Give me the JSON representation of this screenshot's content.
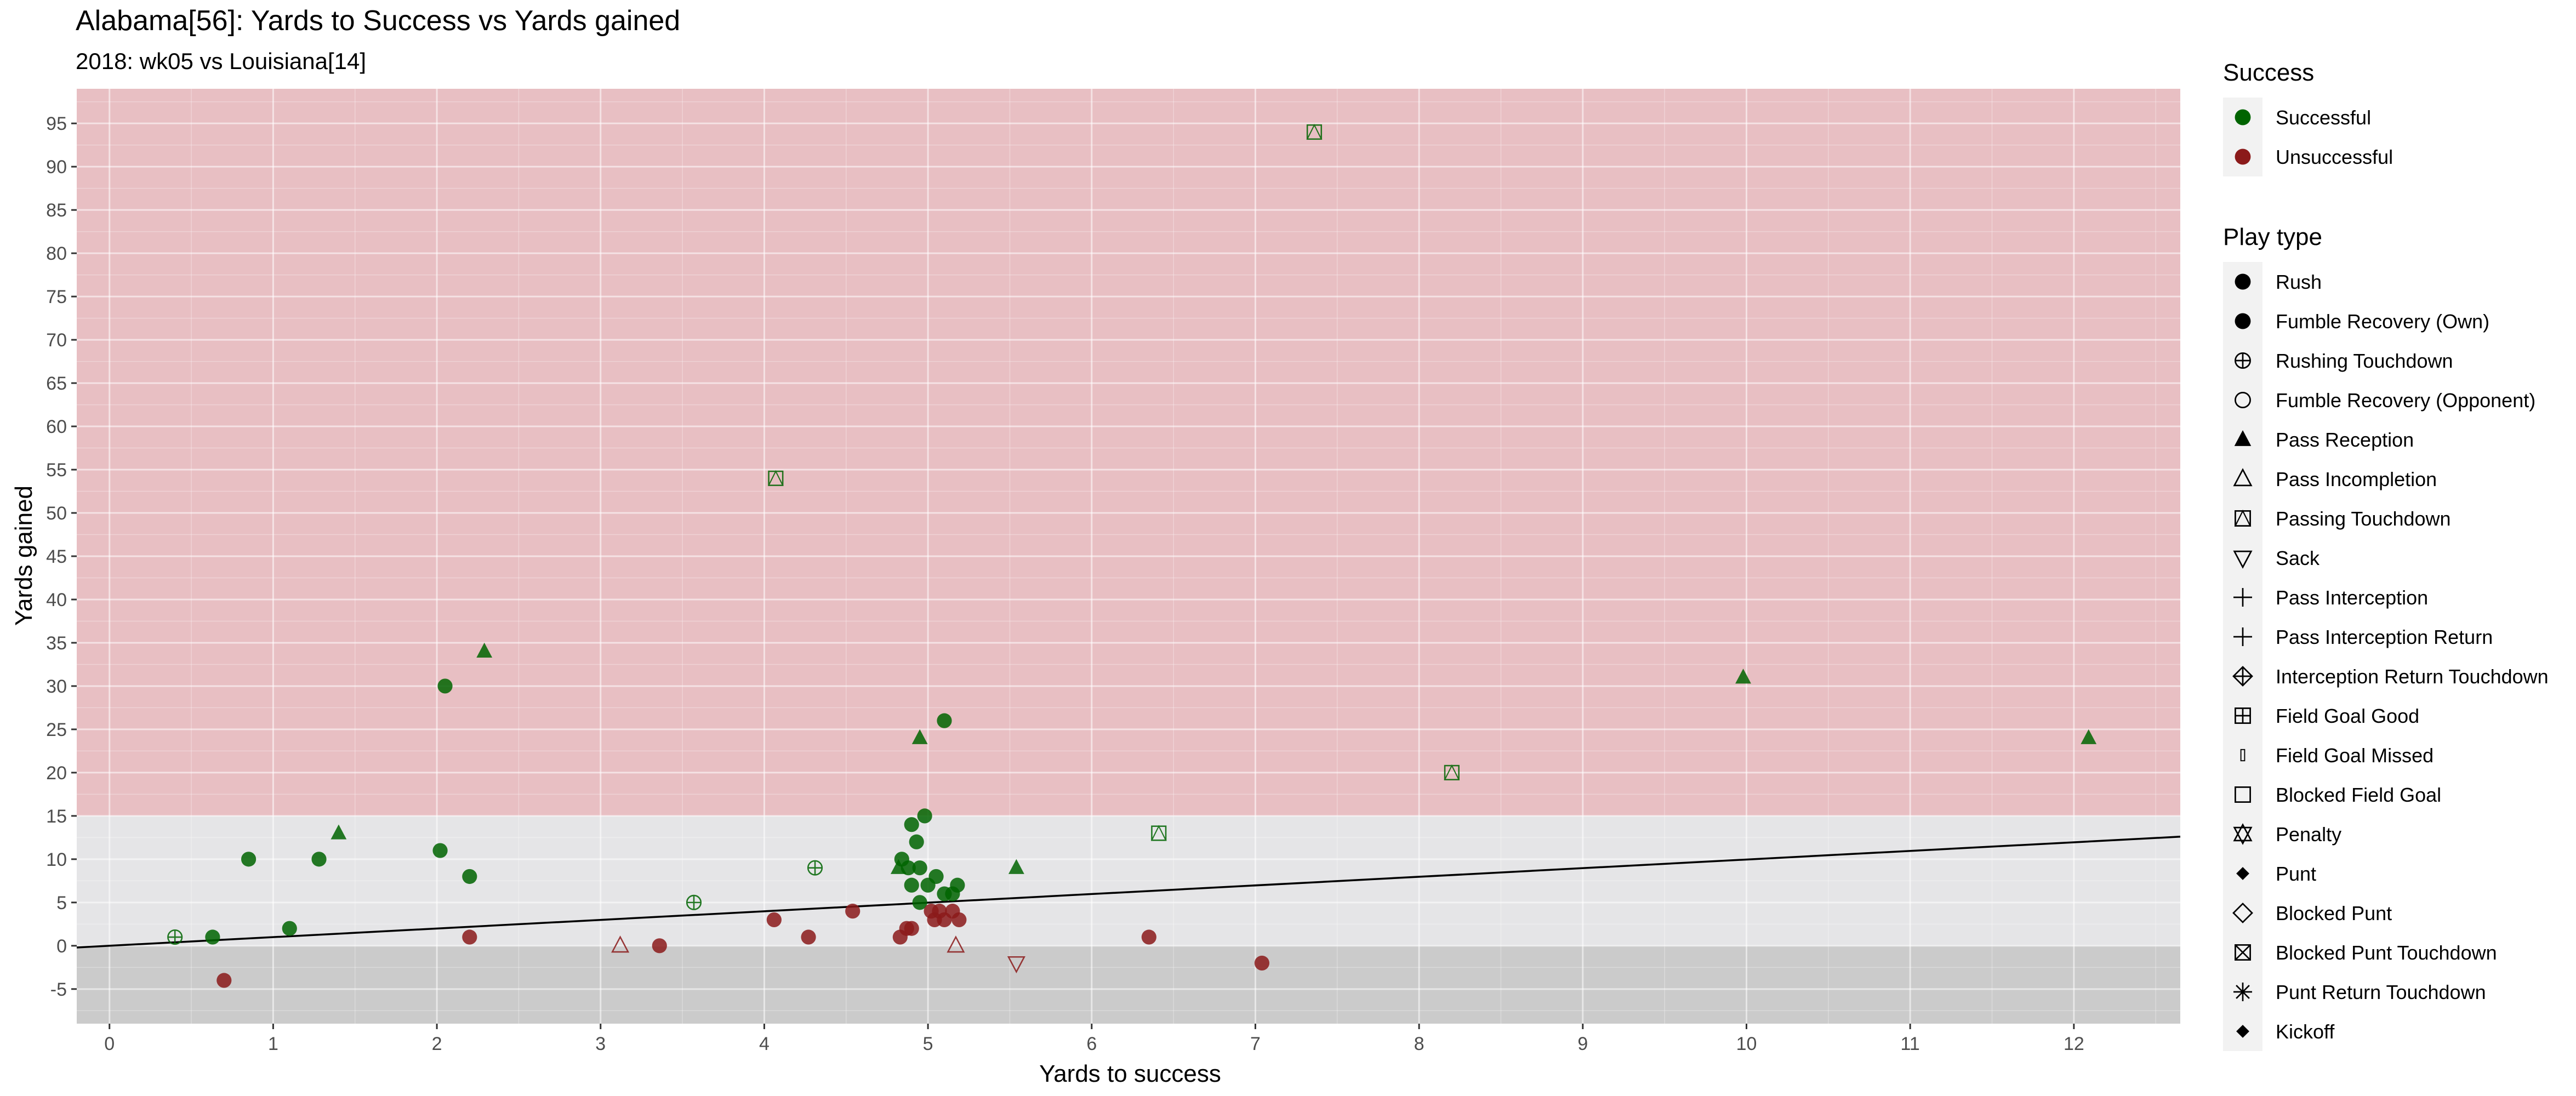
{
  "chart_data": {
    "type": "scatter",
    "title": "Alabama[56]: Yards to Success vs Yards gained",
    "subtitle": "2018: wk05 vs Louisiana[14]",
    "xlabel": "Yards to success",
    "ylabel": "Yards gained",
    "xlim": [
      -0.2,
      12.65
    ],
    "ylim": [
      -9,
      99
    ],
    "x_ticks": [
      0,
      1,
      2,
      3,
      4,
      5,
      6,
      7,
      8,
      9,
      10,
      11,
      12
    ],
    "y_ticks": [
      -5,
      0,
      5,
      10,
      15,
      20,
      25,
      30,
      35,
      40,
      45,
      50,
      55,
      60,
      65,
      70,
      75,
      80,
      85,
      90,
      95
    ],
    "grid": true,
    "bands": [
      {
        "from": 15,
        "to": 99,
        "color": "#e8bfc3"
      },
      {
        "from": 0,
        "to": 15,
        "color": "#e5e5e7"
      },
      {
        "from": -9,
        "to": 0,
        "color": "#cbcbcb"
      }
    ],
    "trend_line": {
      "x1": -0.2,
      "y1": -0.2,
      "x2": 12.65,
      "y2": 12.6,
      "color": "#000000"
    },
    "colors": {
      "Successful": "#006400",
      "Unsuccessful": "#8b1a1a"
    },
    "legend_success": {
      "title": "Success",
      "items": [
        {
          "label": "Successful",
          "color": "#006400"
        },
        {
          "label": "Unsuccessful",
          "color": "#8b1a1a"
        }
      ]
    },
    "legend_playtype": {
      "title": "Play type",
      "items": [
        {
          "label": "Rush",
          "shape": "circle-filled"
        },
        {
          "label": "Fumble Recovery (Own)",
          "shape": "circle-filled"
        },
        {
          "label": "Rushing Touchdown",
          "shape": "circle-plus"
        },
        {
          "label": "Fumble Recovery (Opponent)",
          "shape": "circle-open"
        },
        {
          "label": "Pass Reception",
          "shape": "triangle-filled"
        },
        {
          "label": "Pass Incompletion",
          "shape": "triangle-open"
        },
        {
          "label": "Passing Touchdown",
          "shape": "square-triangle"
        },
        {
          "label": "Sack",
          "shape": "triangle-down-open"
        },
        {
          "label": "Pass Interception",
          "shape": "plus"
        },
        {
          "label": "Pass Interception Return",
          "shape": "plus"
        },
        {
          "label": "Interception Return Touchdown",
          "shape": "diamond-plus"
        },
        {
          "label": "Field Goal Good",
          "shape": "square-plus"
        },
        {
          "label": "Field Goal Missed",
          "shape": "thin-rect"
        },
        {
          "label": "Blocked Field Goal",
          "shape": "square-open"
        },
        {
          "label": "Penalty",
          "shape": "star-of-david"
        },
        {
          "label": "Punt",
          "shape": "diamond-filled"
        },
        {
          "label": "Blocked Punt",
          "shape": "diamond-open"
        },
        {
          "label": "Blocked Punt Touchdown",
          "shape": "square-x"
        },
        {
          "label": "Punt Return Touchdown",
          "shape": "asterisk"
        },
        {
          "label": "Kickoff",
          "shape": "diamond-filled"
        }
      ]
    },
    "points": [
      {
        "x": 0.4,
        "y": 1,
        "type": "Rushing Touchdown",
        "success": "Successful"
      },
      {
        "x": 0.63,
        "y": 1,
        "type": "Rush",
        "success": "Successful"
      },
      {
        "x": 0.85,
        "y": 10,
        "type": "Rush",
        "success": "Successful"
      },
      {
        "x": 1.1,
        "y": 2,
        "type": "Rush",
        "success": "Successful"
      },
      {
        "x": 1.28,
        "y": 10,
        "type": "Rush",
        "success": "Successful"
      },
      {
        "x": 1.4,
        "y": 13,
        "type": "Pass Reception",
        "success": "Successful"
      },
      {
        "x": 2.02,
        "y": 11,
        "type": "Rush",
        "success": "Successful"
      },
      {
        "x": 2.2,
        "y": 8,
        "type": "Rush",
        "success": "Successful"
      },
      {
        "x": 2.05,
        "y": 30,
        "type": "Rush",
        "success": "Successful"
      },
      {
        "x": 2.29,
        "y": 34,
        "type": "Pass Reception",
        "success": "Successful"
      },
      {
        "x": 3.57,
        "y": 5,
        "type": "Rushing Touchdown",
        "success": "Successful"
      },
      {
        "x": 4.07,
        "y": 54,
        "type": "Passing Touchdown",
        "success": "Successful"
      },
      {
        "x": 4.31,
        "y": 9,
        "type": "Rushing Touchdown",
        "success": "Successful"
      },
      {
        "x": 4.82,
        "y": 9,
        "type": "Pass Reception",
        "success": "Successful"
      },
      {
        "x": 4.84,
        "y": 10,
        "type": "Rush",
        "success": "Successful"
      },
      {
        "x": 4.88,
        "y": 9,
        "type": "Rush",
        "success": "Successful"
      },
      {
        "x": 4.9,
        "y": 14,
        "type": "Rush",
        "success": "Successful"
      },
      {
        "x": 4.93,
        "y": 12,
        "type": "Rush",
        "success": "Successful"
      },
      {
        "x": 4.95,
        "y": 24,
        "type": "Pass Reception",
        "success": "Successful"
      },
      {
        "x": 4.95,
        "y": 9,
        "type": "Rush",
        "success": "Successful"
      },
      {
        "x": 4.98,
        "y": 15,
        "type": "Rush",
        "success": "Successful"
      },
      {
        "x": 4.9,
        "y": 7,
        "type": "Rush",
        "success": "Successful"
      },
      {
        "x": 4.95,
        "y": 5,
        "type": "Rush",
        "success": "Successful"
      },
      {
        "x": 5.0,
        "y": 7,
        "type": "Rush",
        "success": "Successful"
      },
      {
        "x": 5.05,
        "y": 8,
        "type": "Rush",
        "success": "Successful"
      },
      {
        "x": 5.1,
        "y": 26,
        "type": "Rush",
        "success": "Successful"
      },
      {
        "x": 5.1,
        "y": 6,
        "type": "Rush",
        "success": "Successful"
      },
      {
        "x": 5.15,
        "y": 6,
        "type": "Rush",
        "success": "Successful"
      },
      {
        "x": 5.18,
        "y": 7,
        "type": "Rush",
        "success": "Successful"
      },
      {
        "x": 5.54,
        "y": 9,
        "type": "Pass Reception",
        "success": "Successful"
      },
      {
        "x": 6.41,
        "y": 13,
        "type": "Passing Touchdown",
        "success": "Successful"
      },
      {
        "x": 7.36,
        "y": 94,
        "type": "Passing Touchdown",
        "success": "Successful"
      },
      {
        "x": 8.2,
        "y": 20,
        "type": "Passing Touchdown",
        "success": "Successful"
      },
      {
        "x": 9.98,
        "y": 31,
        "type": "Pass Reception",
        "success": "Successful"
      },
      {
        "x": 12.09,
        "y": 24,
        "type": "Pass Reception",
        "success": "Successful"
      },
      {
        "x": 0.7,
        "y": -4,
        "type": "Rush",
        "success": "Unsuccessful"
      },
      {
        "x": 2.2,
        "y": 1,
        "type": "Rush",
        "success": "Unsuccessful"
      },
      {
        "x": 3.12,
        "y": 0,
        "type": "Pass Incompletion",
        "success": "Unsuccessful"
      },
      {
        "x": 3.36,
        "y": 0,
        "type": "Rush",
        "success": "Unsuccessful"
      },
      {
        "x": 4.06,
        "y": 3,
        "type": "Rush",
        "success": "Unsuccessful"
      },
      {
        "x": 4.27,
        "y": 1,
        "type": "Rush",
        "success": "Unsuccessful"
      },
      {
        "x": 4.54,
        "y": 4,
        "type": "Rush",
        "success": "Unsuccessful"
      },
      {
        "x": 4.83,
        "y": 1,
        "type": "Rush",
        "success": "Unsuccessful"
      },
      {
        "x": 4.87,
        "y": 2,
        "type": "Rush",
        "success": "Unsuccessful"
      },
      {
        "x": 4.9,
        "y": 2,
        "type": "Rush",
        "success": "Unsuccessful"
      },
      {
        "x": 5.02,
        "y": 4,
        "type": "Rush",
        "success": "Unsuccessful"
      },
      {
        "x": 5.04,
        "y": 3,
        "type": "Rush",
        "success": "Unsuccessful"
      },
      {
        "x": 5.07,
        "y": 4,
        "type": "Rush",
        "success": "Unsuccessful"
      },
      {
        "x": 5.1,
        "y": 3,
        "type": "Rush",
        "success": "Unsuccessful"
      },
      {
        "x": 5.15,
        "y": 4,
        "type": "Rush",
        "success": "Unsuccessful"
      },
      {
        "x": 5.19,
        "y": 3,
        "type": "Rush",
        "success": "Unsuccessful"
      },
      {
        "x": 5.17,
        "y": 0,
        "type": "Pass Incompletion",
        "success": "Unsuccessful"
      },
      {
        "x": 5.54,
        "y": -2,
        "type": "Sack",
        "success": "Unsuccessful"
      },
      {
        "x": 6.35,
        "y": 1,
        "type": "Rush",
        "success": "Unsuccessful"
      },
      {
        "x": 7.04,
        "y": -2,
        "type": "Rush",
        "success": "Unsuccessful"
      }
    ]
  }
}
